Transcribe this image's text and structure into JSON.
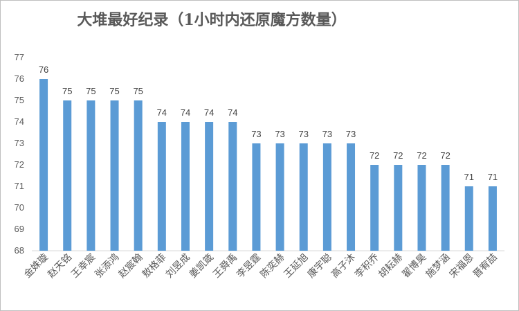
{
  "chart_data": {
    "type": "bar",
    "title": "大堆最好纪录（1小时内还原魔方数量）",
    "xlabel": "",
    "ylabel": "",
    "ylim": [
      68,
      77
    ],
    "yticks": [
      68,
      69,
      70,
      71,
      72,
      73,
      74,
      75,
      76,
      77
    ],
    "grid": false,
    "legend": "none",
    "bar_color": "#5b9bd5",
    "data_labels": true,
    "categories": [
      "金姝璇",
      "赵天铭",
      "王幸宸",
      "张添鸿",
      "赵宸翰",
      "敖格菲",
      "刘昱成",
      "姜凯箴",
      "王舜禹",
      "李昱霆",
      "陈奕赫",
      "王延旭",
      "康宇聪",
      "高子沐",
      "李积乔",
      "胡耘赫",
      "翟博昊",
      "施梦涵",
      "宋福恩",
      "晋宥喆"
    ],
    "values": [
      76,
      75,
      75,
      75,
      75,
      74,
      74,
      74,
      74,
      73,
      73,
      73,
      73,
      73,
      72,
      72,
      72,
      72,
      71,
      71
    ]
  }
}
